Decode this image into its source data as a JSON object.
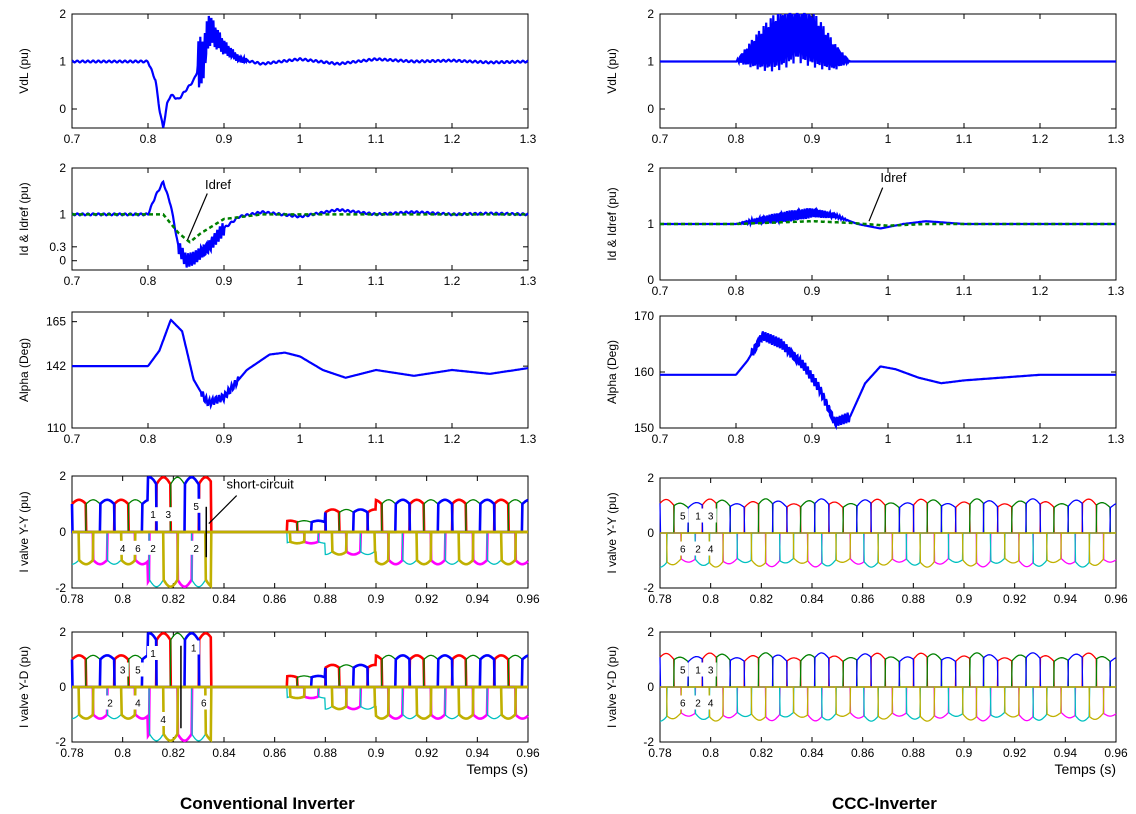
{
  "figure": {
    "left_title": "Conventional Inverter",
    "right_title": "CCC-Inverter"
  },
  "colors": {
    "vdl": "#0000ff",
    "idref": "#008000",
    "phase_a": "#ff0000",
    "phase_b": "#008000",
    "phase_c": "#0000ff",
    "phase_a_neg": "#ff00ff",
    "phase_b_neg": "#00c0c0",
    "phase_c_neg": "#c0b000"
  },
  "chart_data": [
    {
      "id": "conv-vdl",
      "type": "line",
      "ylabel": "VdL (pu)",
      "xlim": [
        0.7,
        1.3
      ],
      "ylim": [
        -0.4,
        2
      ],
      "xticks": [
        "0.7",
        "0.8",
        "0.9",
        "1",
        "1.1",
        "1.2",
        "1.3"
      ],
      "yticks": [
        "0",
        "1",
        "2"
      ],
      "series": [
        {
          "color": "#0000ff",
          "x": [
            0.7,
            0.8,
            0.81,
            0.815,
            0.82,
            0.825,
            0.83,
            0.84,
            0.86,
            0.875,
            0.88,
            0.9,
            0.92,
            0.95,
            1.0,
            1.05,
            1.1,
            1.15,
            1.2,
            1.25,
            1.3
          ],
          "y": [
            1.0,
            1.0,
            0.6,
            0.0,
            -0.4,
            0.1,
            0.3,
            0.2,
            0.6,
            1.2,
            1.7,
            1.3,
            1.05,
            0.95,
            1.05,
            0.95,
            1.05,
            1.0,
            1.02,
            0.98,
            1.0
          ]
        }
      ]
    },
    {
      "id": "conv-id",
      "type": "line",
      "ylabel": "Id & Idref (pu)",
      "xlim": [
        0.7,
        1.3
      ],
      "ylim": [
        -0.2,
        2
      ],
      "xticks": [
        "0.7",
        "0.8",
        "0.9",
        "1",
        "1.1",
        "1.2",
        "1.3"
      ],
      "yticks": [
        "0",
        "0.3",
        "1",
        "2"
      ],
      "series": [
        {
          "color": "#0000ff",
          "x": [
            0.7,
            0.8,
            0.81,
            0.82,
            0.83,
            0.84,
            0.85,
            0.86,
            0.88,
            0.9,
            0.92,
            0.95,
            1.0,
            1.05,
            1.1,
            1.15,
            1.2,
            1.25,
            1.3
          ],
          "y": [
            1.0,
            1.0,
            1.4,
            1.7,
            1.2,
            0.3,
            0.0,
            0.05,
            0.3,
            0.7,
            0.95,
            1.05,
            0.95,
            1.1,
            1.0,
            1.05,
            1.0,
            1.02,
            1.0
          ]
        },
        {
          "color": "#008000",
          "dash": "4 3",
          "x": [
            0.7,
            0.8,
            0.82,
            0.84,
            0.855,
            0.87,
            0.9,
            0.95,
            1.0,
            1.1,
            1.2,
            1.3
          ],
          "y": [
            1.0,
            1.0,
            1.0,
            0.6,
            0.4,
            0.6,
            0.9,
            1.0,
            1.0,
            1.0,
            1.0,
            1.0
          ]
        }
      ],
      "annotation": "Idref"
    },
    {
      "id": "conv-alpha",
      "type": "line",
      "ylabel": "Alpha (Deg)",
      "xlim": [
        0.7,
        1.3
      ],
      "ylim": [
        110,
        170
      ],
      "xticks": [
        "0.7",
        "0.8",
        "0.9",
        "1",
        "1.1",
        "1.2",
        "1.3"
      ],
      "yticks": [
        "110",
        "142",
        "165"
      ],
      "series": [
        {
          "color": "#0000ff",
          "x": [
            0.7,
            0.8,
            0.815,
            0.83,
            0.845,
            0.86,
            0.875,
            0.88,
            0.9,
            0.93,
            0.96,
            0.98,
            1.0,
            1.03,
            1.06,
            1.1,
            1.15,
            1.2,
            1.25,
            1.3
          ],
          "y": [
            142,
            142,
            150,
            166,
            160,
            135,
            125,
            123,
            126,
            140,
            148,
            149,
            147,
            140,
            136,
            140,
            137,
            140,
            138,
            141
          ]
        }
      ]
    },
    {
      "id": "conv-yy",
      "type": "line",
      "ylabel": "I valve Y-Y (pu)",
      "xlim": [
        0.78,
        0.96
      ],
      "ylim": [
        -2,
        2
      ],
      "xticks": [
        "0.78",
        "0.8",
        "0.82",
        "0.84",
        "0.86",
        "0.88",
        "0.9",
        "0.92",
        "0.94",
        "0.96"
      ],
      "yticks": [
        "-2",
        "0",
        "2"
      ],
      "annotation": "short-circuit",
      "valve_labels": [
        "1",
        "3",
        "5",
        "4",
        "6",
        "2",
        "2"
      ]
    },
    {
      "id": "conv-yd",
      "type": "line",
      "ylabel": "I valve Y-D (pu)",
      "xlim": [
        0.78,
        0.96
      ],
      "ylim": [
        -2,
        2
      ],
      "xticks": [
        "0.78",
        "0.8",
        "0.82",
        "0.84",
        "0.86",
        "0.88",
        "0.9",
        "0.92",
        "0.94",
        "0.96"
      ],
      "yticks": [
        "-2",
        "0",
        "2"
      ],
      "xlabel": "Temps (s)",
      "valve_labels": [
        "3",
        "5",
        "1",
        "1",
        "2",
        "4",
        "4",
        "6"
      ]
    },
    {
      "id": "ccc-vdl",
      "type": "line",
      "ylabel": "VdL (pu)",
      "xlim": [
        0.7,
        1.3
      ],
      "ylim": [
        -0.4,
        2
      ],
      "xticks": [
        "0.7",
        "0.8",
        "0.9",
        "1",
        "1.1",
        "1.2",
        "1.3"
      ],
      "yticks": [
        "0",
        "1",
        "2"
      ],
      "series": [
        {
          "color": "#0000ff",
          "x": [
            0.7,
            0.8,
            0.85,
            0.88,
            0.9,
            0.93,
            0.95,
            1.0,
            1.1,
            1.2,
            1.3
          ],
          "y": [
            1.0,
            1.0,
            1.4,
            1.7,
            1.5,
            1.1,
            1.0,
            1.0,
            1.0,
            1.0,
            1.0
          ]
        }
      ]
    },
    {
      "id": "ccc-id",
      "type": "line",
      "ylabel": "Id & Idref (pu)",
      "xlim": [
        0.7,
        1.3
      ],
      "ylim": [
        0,
        2
      ],
      "xticks": [
        "0.7",
        "0.8",
        "0.9",
        "1",
        "1.1",
        "1.2",
        "1.3"
      ],
      "yticks": [
        "0",
        "1",
        "2"
      ],
      "series": [
        {
          "color": "#0000ff",
          "x": [
            0.7,
            0.8,
            0.85,
            0.9,
            0.93,
            0.96,
            0.99,
            1.02,
            1.05,
            1.1,
            1.2,
            1.3
          ],
          "y": [
            1.0,
            1.0,
            1.1,
            1.2,
            1.15,
            1.0,
            0.92,
            1.0,
            1.05,
            1.0,
            1.0,
            1.0
          ]
        },
        {
          "color": "#008000",
          "dash": "4 3",
          "x": [
            0.7,
            0.8,
            0.9,
            0.95,
            1.0,
            1.05,
            1.1,
            1.2,
            1.3
          ],
          "y": [
            1.0,
            1.0,
            1.05,
            1.02,
            0.97,
            1.0,
            1.0,
            1.0,
            1.0
          ]
        }
      ],
      "annotation": "Idref"
    },
    {
      "id": "ccc-alpha",
      "type": "line",
      "ylabel": "Alpha (Deg)",
      "xlim": [
        0.7,
        1.3
      ],
      "ylim": [
        150,
        170
      ],
      "xticks": [
        "0.7",
        "0.8",
        "0.9",
        "1",
        "1.1",
        "1.2",
        "1.3"
      ],
      "yticks": [
        "150",
        "160",
        "170"
      ],
      "series": [
        {
          "color": "#0000ff",
          "x": [
            0.7,
            0.8,
            0.815,
            0.835,
            0.86,
            0.89,
            0.91,
            0.93,
            0.95,
            0.97,
            0.99,
            1.01,
            1.04,
            1.07,
            1.1,
            1.15,
            1.2,
            1.25,
            1.3
          ],
          "y": [
            159.5,
            159.5,
            162,
            166.5,
            165,
            161,
            157,
            151,
            152,
            158,
            161,
            160.5,
            159,
            158,
            158.5,
            159,
            159.5,
            159.5,
            159.5
          ]
        }
      ]
    },
    {
      "id": "ccc-yy",
      "type": "line",
      "ylabel": "I valve Y-Y (pu)",
      "xlim": [
        0.78,
        0.96
      ],
      "ylim": [
        -2,
        2
      ],
      "xticks": [
        "0.78",
        "0.8",
        "0.82",
        "0.84",
        "0.86",
        "0.88",
        "0.9",
        "0.92",
        "0.94",
        "0.96"
      ],
      "yticks": [
        "-2",
        "0",
        "2"
      ],
      "valve_labels": [
        "5",
        "1",
        "3",
        "6",
        "2",
        "4"
      ]
    },
    {
      "id": "ccc-yd",
      "type": "line",
      "ylabel": "I valve Y-D (pu)",
      "xlim": [
        0.78,
        0.96
      ],
      "ylim": [
        -2,
        2
      ],
      "xticks": [
        "0.78",
        "0.8",
        "0.82",
        "0.84",
        "0.86",
        "0.88",
        "0.9",
        "0.92",
        "0.94",
        "0.96"
      ],
      "yticks": [
        "-2",
        "0",
        "2"
      ],
      "xlabel": "Temps (s)",
      "valve_labels": [
        "5",
        "1",
        "3",
        "6",
        "2",
        "4"
      ]
    }
  ]
}
